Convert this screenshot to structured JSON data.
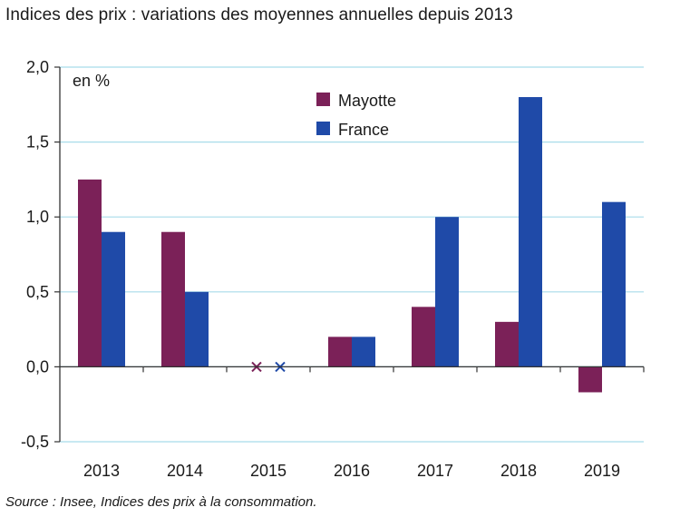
{
  "title": "Indices des prix : variations des moyennes annuelles depuis 2013",
  "source": "Source : Insee, Indices des prix à la consommation.",
  "unit_label": "en %",
  "colors": {
    "mayotte": "#7b2158",
    "france": "#1f4aa8",
    "grid": "#a8dcea",
    "axis": "#333333"
  },
  "chart_data": {
    "type": "bar",
    "title": "Indices des prix : variations des moyennes annuelles depuis 2013",
    "xlabel": "",
    "ylabel": "en %",
    "categories": [
      "2013",
      "2014",
      "2015",
      "2016",
      "2017",
      "2018",
      "2019"
    ],
    "series": [
      {
        "name": "Mayotte",
        "values": [
          1.25,
          0.9,
          null,
          0.2,
          0.4,
          0.3,
          -0.17
        ]
      },
      {
        "name": "France",
        "values": [
          0.9,
          0.5,
          null,
          0.2,
          1.0,
          1.8,
          1.1
        ]
      }
    ],
    "missing_marker": "x",
    "ylim": [
      -0.5,
      2.0
    ],
    "yticks": [
      "2,0",
      "1,5",
      "1,0",
      "0,5",
      "0,0",
      "-0,5"
    ],
    "ytick_values": [
      2.0,
      1.5,
      1.0,
      0.5,
      0.0,
      -0.5
    ],
    "grid": true,
    "legend_position": "top-center"
  }
}
